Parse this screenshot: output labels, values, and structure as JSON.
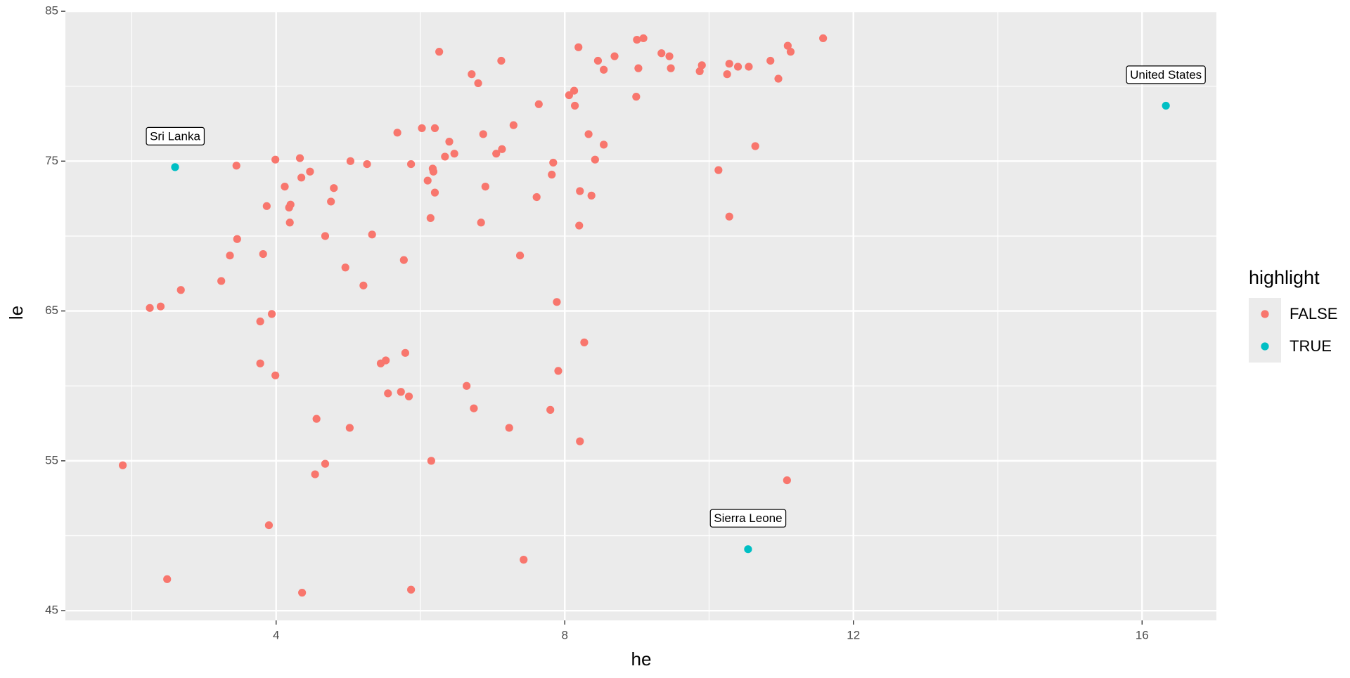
{
  "chart_data": {
    "type": "scatter",
    "x_label": "he",
    "y_label": "le",
    "xlim": [
      1.08,
      17.03
    ],
    "ylim": [
      44.35,
      85.05
    ],
    "xticks": [
      4,
      8,
      12,
      16
    ],
    "yticks": [
      45,
      55,
      65,
      75,
      85
    ],
    "grid": true,
    "legend_title": "highlight",
    "legend_position": "right",
    "series": [
      {
        "name": "FALSE",
        "color": "#F8766D",
        "x": [
          1.875,
          2.25,
          2.4,
          2.49,
          2.68,
          3.24,
          3.36,
          3.45,
          3.46,
          3.78,
          3.78,
          3.82,
          3.87,
          3.9,
          3.94,
          3.99,
          3.99,
          4.12,
          4.18,
          4.2,
          4.19,
          4.33,
          4.35,
          4.36,
          4.47,
          4.54,
          4.56,
          4.68,
          4.68,
          4.76,
          4.8,
          4.96,
          5.02,
          5.03,
          5.21,
          5.26,
          5.33,
          5.45,
          5.52,
          5.55,
          5.68,
          5.73,
          5.77,
          5.79,
          5.84,
          5.87,
          5.87,
          6.02,
          6.1,
          6.14,
          6.15,
          6.17,
          6.18,
          6.2,
          6.2,
          6.26,
          6.34,
          6.4,
          6.47,
          6.64,
          6.71,
          6.74,
          6.8,
          6.84,
          6.87,
          6.9,
          7.05,
          7.13,
          7.12,
          7.23,
          7.29,
          7.38,
          7.43,
          7.61,
          7.64,
          7.8,
          7.82,
          7.84,
          7.89,
          7.91,
          8.06,
          8.13,
          8.14,
          8.19,
          8.2,
          8.21,
          8.21,
          8.27,
          8.33,
          8.37,
          8.42,
          8.46,
          8.54,
          8.54,
          8.69,
          8.99,
          9.0,
          9.02,
          9.09,
          9.34,
          9.45,
          9.47,
          9.87,
          9.9,
          10.13,
          10.25,
          10.28,
          10.28,
          10.4,
          10.55,
          10.64,
          10.85,
          10.96,
          11.08,
          11.09,
          11.13,
          11.58
        ],
        "values": [
          54.7,
          65.2,
          65.3,
          47.1,
          66.4,
          67.0,
          68.7,
          74.7,
          69.8,
          64.3,
          61.5,
          68.8,
          72.0,
          50.7,
          64.8,
          60.7,
          75.1,
          73.3,
          71.9,
          72.1,
          70.9,
          75.2,
          73.9,
          46.2,
          74.3,
          54.1,
          57.8,
          70.0,
          54.8,
          72.3,
          73.2,
          67.9,
          57.2,
          75.0,
          66.7,
          74.8,
          70.1,
          61.5,
          61.7,
          59.5,
          76.9,
          59.6,
          68.4,
          62.2,
          59.3,
          46.4,
          74.8,
          77.2,
          73.7,
          71.2,
          55.0,
          74.5,
          74.3,
          77.2,
          72.9,
          82.3,
          75.3,
          76.3,
          75.5,
          60.0,
          80.8,
          58.5,
          80.2,
          70.9,
          76.8,
          73.3,
          75.5,
          75.8,
          81.7,
          57.2,
          77.4,
          68.7,
          48.4,
          72.6,
          78.8,
          58.4,
          74.1,
          74.9,
          65.6,
          61.0,
          79.4,
          79.7,
          78.7,
          82.6,
          70.7,
          73.0,
          56.3,
          62.9,
          76.8,
          72.7,
          75.1,
          81.7,
          81.1,
          76.1,
          82.0,
          79.3,
          83.1,
          81.2,
          83.2,
          82.2,
          82.0,
          81.2,
          81.0,
          81.4,
          74.4,
          80.8,
          81.5,
          71.3,
          81.3,
          81.3,
          76.0,
          81.7,
          80.5,
          53.7,
          82.7,
          82.3,
          83.2
        ]
      },
      {
        "name": "TRUE",
        "color": "#00BFC4",
        "x": [
          2.6,
          16.33,
          10.54
        ],
        "values": [
          74.6,
          78.7,
          49.1
        ],
        "labels": [
          "Sri Lanka",
          "United States",
          "Sierra Leone"
        ]
      }
    ]
  }
}
